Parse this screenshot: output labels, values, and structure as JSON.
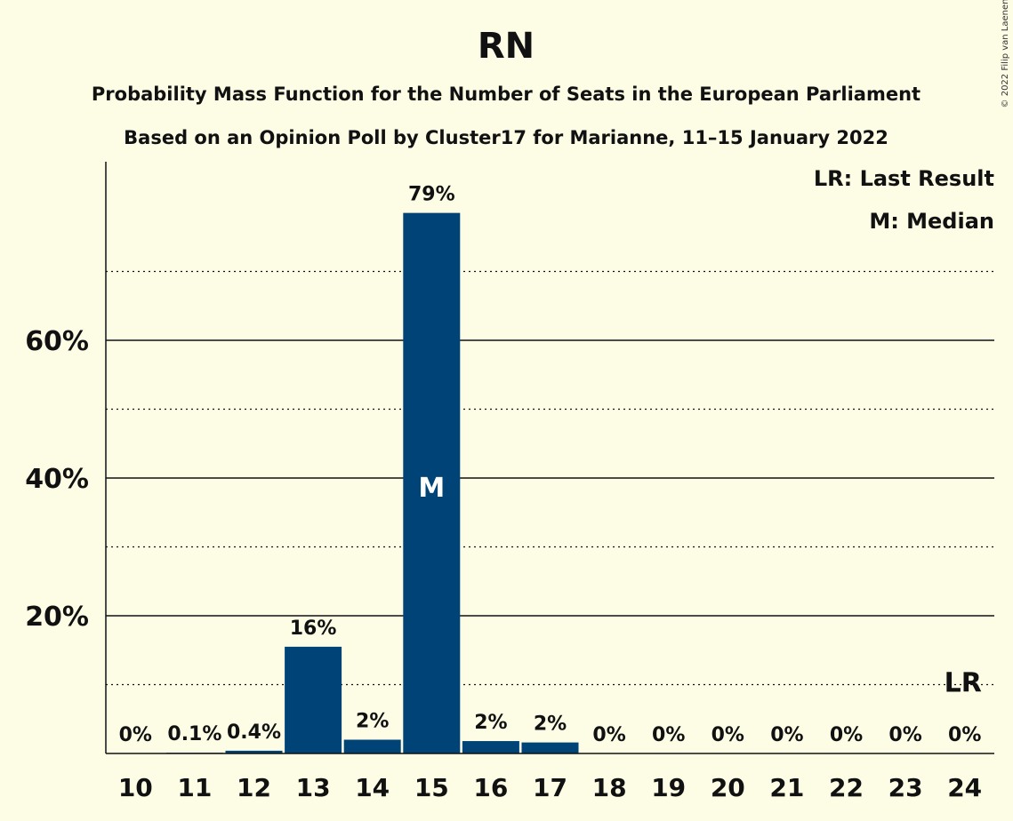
{
  "chart_data": {
    "type": "bar",
    "title": "RN",
    "subtitle": "Probability Mass Function for the Number of Seats in the European Parliament",
    "subtitle2": "Based on an Opinion Poll by Cluster17 for Marianne, 11–15 January 2022",
    "copyright": "© 2022 Filip van Laenen",
    "categories": [
      "10",
      "11",
      "12",
      "13",
      "14",
      "15",
      "16",
      "17",
      "18",
      "19",
      "20",
      "21",
      "22",
      "23",
      "24"
    ],
    "values": [
      0,
      0.1,
      0.4,
      15.5,
      2,
      78.5,
      1.8,
      1.6,
      0,
      0,
      0,
      0,
      0,
      0,
      0
    ],
    "data_labels": [
      "0%",
      "0.1%",
      "0.4%",
      "16%",
      "2%",
      "79%",
      "2%",
      "2%",
      "0%",
      "0%",
      "0%",
      "0%",
      "0%",
      "0%",
      "0%"
    ],
    "y_ticks": [
      {
        "value": 20,
        "label": "20%"
      },
      {
        "value": 40,
        "label": "40%"
      },
      {
        "value": 60,
        "label": "60%"
      }
    ],
    "y_minor_grid": [
      10,
      30,
      50,
      70
    ],
    "ylim": [
      0,
      86
    ],
    "median_category": "15",
    "median_label": "M",
    "last_result_category": "24",
    "last_result_label": "LR",
    "last_result_value": 10,
    "legend": [
      "LR: Last Result",
      "M: Median"
    ],
    "legend_position": "top-right",
    "bar_color": "#004477"
  }
}
